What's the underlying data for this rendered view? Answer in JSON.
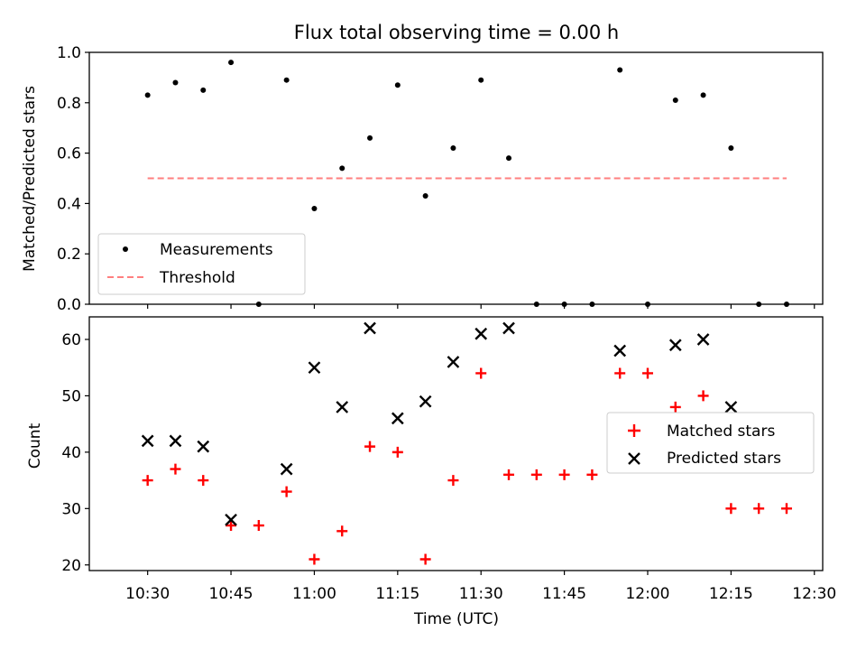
{
  "chart_data": {
    "title": "Flux total observing time = 0.00 h",
    "xlabel": "Time (UTC)",
    "x_tick_labels": [
      "10:30",
      "10:45",
      "11:00",
      "11:15",
      "11:30",
      "11:45",
      "12:00",
      "12:15",
      "12:30"
    ],
    "x_tick_minutes": [
      630,
      645,
      660,
      675,
      690,
      705,
      720,
      735,
      750
    ],
    "xlim_minutes": [
      619.5,
      751.5
    ],
    "x_times": [
      "10:30",
      "10:35",
      "10:40",
      "10:45",
      "10:50",
      "10:55",
      "11:00",
      "11:05",
      "11:10",
      "11:15",
      "11:20",
      "11:25",
      "11:30",
      "11:35",
      "11:40",
      "11:45",
      "11:50",
      "11:55",
      "12:00",
      "12:05",
      "12:10",
      "12:15",
      "12:20",
      "12:25"
    ],
    "panels": [
      {
        "type": "scatter",
        "ylabel": "Matched/Predicted stars",
        "ylim": [
          0,
          1.0
        ],
        "y_tick_labels": [
          "0.0",
          "0.2",
          "0.4",
          "0.6",
          "0.8",
          "1.0"
        ],
        "y_ticks": [
          0,
          0.2,
          0.4,
          0.6,
          0.8,
          1.0
        ],
        "legend_position": "lower-left",
        "series": [
          {
            "name": "Measurements",
            "marker": "dot",
            "color": "#000000",
            "values": [
              0.83,
              0.88,
              0.85,
              0.96,
              0.0,
              0.89,
              0.38,
              0.54,
              0.66,
              0.87,
              0.43,
              0.62,
              0.89,
              0.58,
              0.0,
              0.0,
              0.0,
              0.93,
              0.0,
              0.81,
              0.83,
              0.62,
              0.0,
              0.0
            ]
          }
        ],
        "threshold": {
          "name": "Threshold",
          "value": 0.5,
          "color": "#ff7f7f",
          "style": "dashed"
        }
      },
      {
        "type": "scatter",
        "ylabel": "Count",
        "ylim": [
          19,
          64
        ],
        "y_tick_labels": [
          "20",
          "30",
          "40",
          "50",
          "60"
        ],
        "y_ticks": [
          20,
          30,
          40,
          50,
          60
        ],
        "legend_position": "right",
        "series": [
          {
            "name": "Matched stars",
            "marker": "plus",
            "color": "#ff0000",
            "values": [
              35,
              37,
              35,
              27,
              27,
              33,
              21,
              26,
              41,
              40,
              21,
              35,
              54,
              36,
              36,
              36,
              36,
              54,
              54,
              48,
              50,
              30,
              30,
              30
            ]
          },
          {
            "name": "Predicted stars",
            "marker": "x",
            "color": "#000000",
            "values": [
              42,
              42,
              41,
              28,
              null,
              37,
              55,
              48,
              62,
              46,
              49,
              56,
              61,
              62,
              null,
              null,
              null,
              58,
              null,
              59,
              60,
              48,
              null,
              null
            ]
          }
        ]
      }
    ]
  }
}
